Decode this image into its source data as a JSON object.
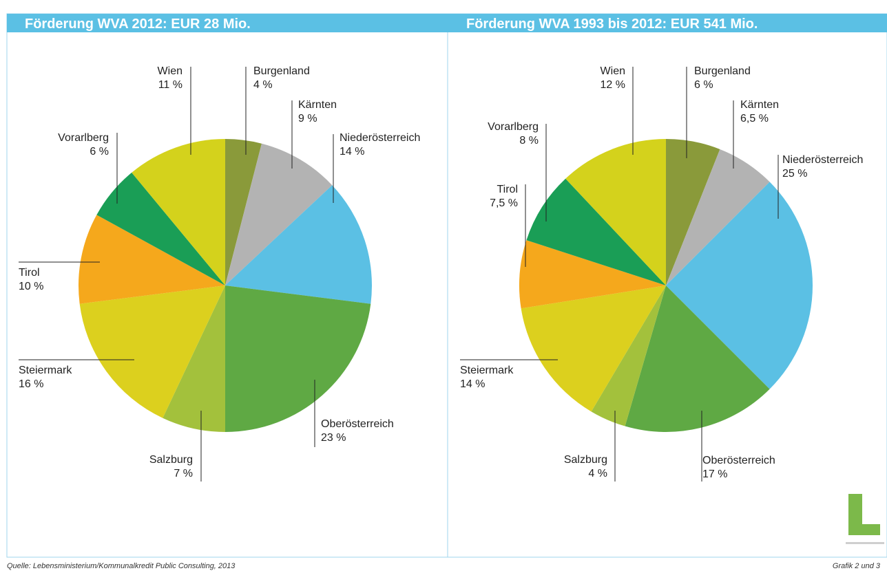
{
  "chart_data": [
    {
      "type": "pie",
      "title": "Förderung WVA 2012: EUR 28 Mio.",
      "categories": [
        "Burgenland",
        "Kärnten",
        "Niederösterreich",
        "Oberösterreich",
        "Salzburg",
        "Steiermark",
        "Tirol",
        "Vorarlberg",
        "Wien"
      ],
      "values": [
        4,
        9,
        14,
        23,
        7,
        16,
        10,
        6,
        11
      ],
      "value_labels": [
        "4 %",
        "9 %",
        "14 %",
        "23 %",
        "7 %",
        "16 %",
        "10 %",
        "6 %",
        "11 %"
      ],
      "colors": [
        "#8a9a3a",
        "#b3b3b3",
        "#5bc0e4",
        "#5fa944",
        "#a3c13c",
        "#dcd01e",
        "#f5a81c",
        "#1a9e56",
        "#d4d21c"
      ]
    },
    {
      "type": "pie",
      "title": "Förderung WVA 1993 bis 2012: EUR 541 Mio.",
      "categories": [
        "Burgenland",
        "Kärnten",
        "Niederösterreich",
        "Oberösterreich",
        "Salzburg",
        "Steiermark",
        "Tirol",
        "Vorarlberg",
        "Wien"
      ],
      "values": [
        6,
        6.5,
        25,
        17,
        4,
        14,
        7.5,
        8,
        12
      ],
      "value_labels": [
        "6 %",
        "6,5 %",
        "25 %",
        "17 %",
        "4 %",
        "14 %",
        "7,5 %",
        "8 %",
        "12 %"
      ],
      "colors": [
        "#8a9a3a",
        "#b3b3b3",
        "#5bc0e4",
        "#5fa944",
        "#a3c13c",
        "#dcd01e",
        "#f5a81c",
        "#1a9e56",
        "#d4d21c"
      ]
    }
  ],
  "footer": {
    "source": "Quelle: Lebensministerium/Kommunalkredit Public Consulting, 2013",
    "page": "Grafik 2 und 3"
  }
}
